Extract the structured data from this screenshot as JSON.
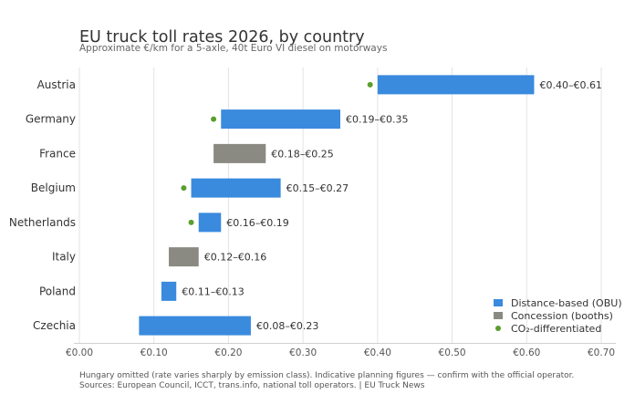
{
  "chart_data": {
    "type": "bar",
    "orientation": "horizontal-range",
    "title": "EU truck toll rates 2026, by country",
    "subtitle": "Approximate €/km for a 5-axle, 40t Euro VI diesel on motorways",
    "xlim": [
      0,
      0.7
    ],
    "x_ticks": [
      0,
      0.1,
      0.2,
      0.3,
      0.4,
      0.5,
      0.6,
      0.7
    ],
    "x_tick_labels": [
      "€0.00",
      "€0.10",
      "€0.20",
      "€0.30",
      "€0.40",
      "€0.50",
      "€0.60",
      "€0.70"
    ],
    "grid": "vertical",
    "legend_position": "bottom-right",
    "colors": {
      "distance": "#3a8ade",
      "concession": "#8a8a82",
      "co2": "#5a9e2f"
    },
    "legend": [
      {
        "key": "distance",
        "label": "Distance-based (OBU)",
        "marker": "square"
      },
      {
        "key": "concession",
        "label": "Concession (booths)",
        "marker": "square"
      },
      {
        "key": "co2",
        "label": "CO₂-differentiated",
        "marker": "dot"
      }
    ],
    "rows": [
      {
        "country": "Austria",
        "low": 0.4,
        "high": 0.61,
        "label": "€0.40–€0.61",
        "system": "distance",
        "co2_point": 0.39
      },
      {
        "country": "Germany",
        "low": 0.19,
        "high": 0.35,
        "label": "€0.19–€0.35",
        "system": "distance",
        "co2_point": 0.18
      },
      {
        "country": "France",
        "low": 0.18,
        "high": 0.25,
        "label": "€0.18–€0.25",
        "system": "concession",
        "co2_point": null
      },
      {
        "country": "Belgium",
        "low": 0.15,
        "high": 0.27,
        "label": "€0.15–€0.27",
        "system": "distance",
        "co2_point": 0.14
      },
      {
        "country": "Netherlands",
        "low": 0.16,
        "high": 0.19,
        "label": "€0.16–€0.19",
        "system": "distance",
        "co2_point": 0.15
      },
      {
        "country": "Italy",
        "low": 0.12,
        "high": 0.16,
        "label": "€0.12–€0.16",
        "system": "concession",
        "co2_point": null
      },
      {
        "country": "Poland",
        "low": 0.11,
        "high": 0.13,
        "label": "€0.11–€0.13",
        "system": "distance",
        "co2_point": null
      },
      {
        "country": "Czechia",
        "low": 0.08,
        "high": 0.23,
        "label": "€0.08–€0.23",
        "system": "distance",
        "co2_point": null
      }
    ],
    "footnotes": [
      "Hungary omitted (rate varies sharply by emission class). Indicative planning figures — confirm with the official operator.",
      "Sources: European Council, ICCT, trans.info, national toll operators.  |  EU Truck News"
    ]
  }
}
